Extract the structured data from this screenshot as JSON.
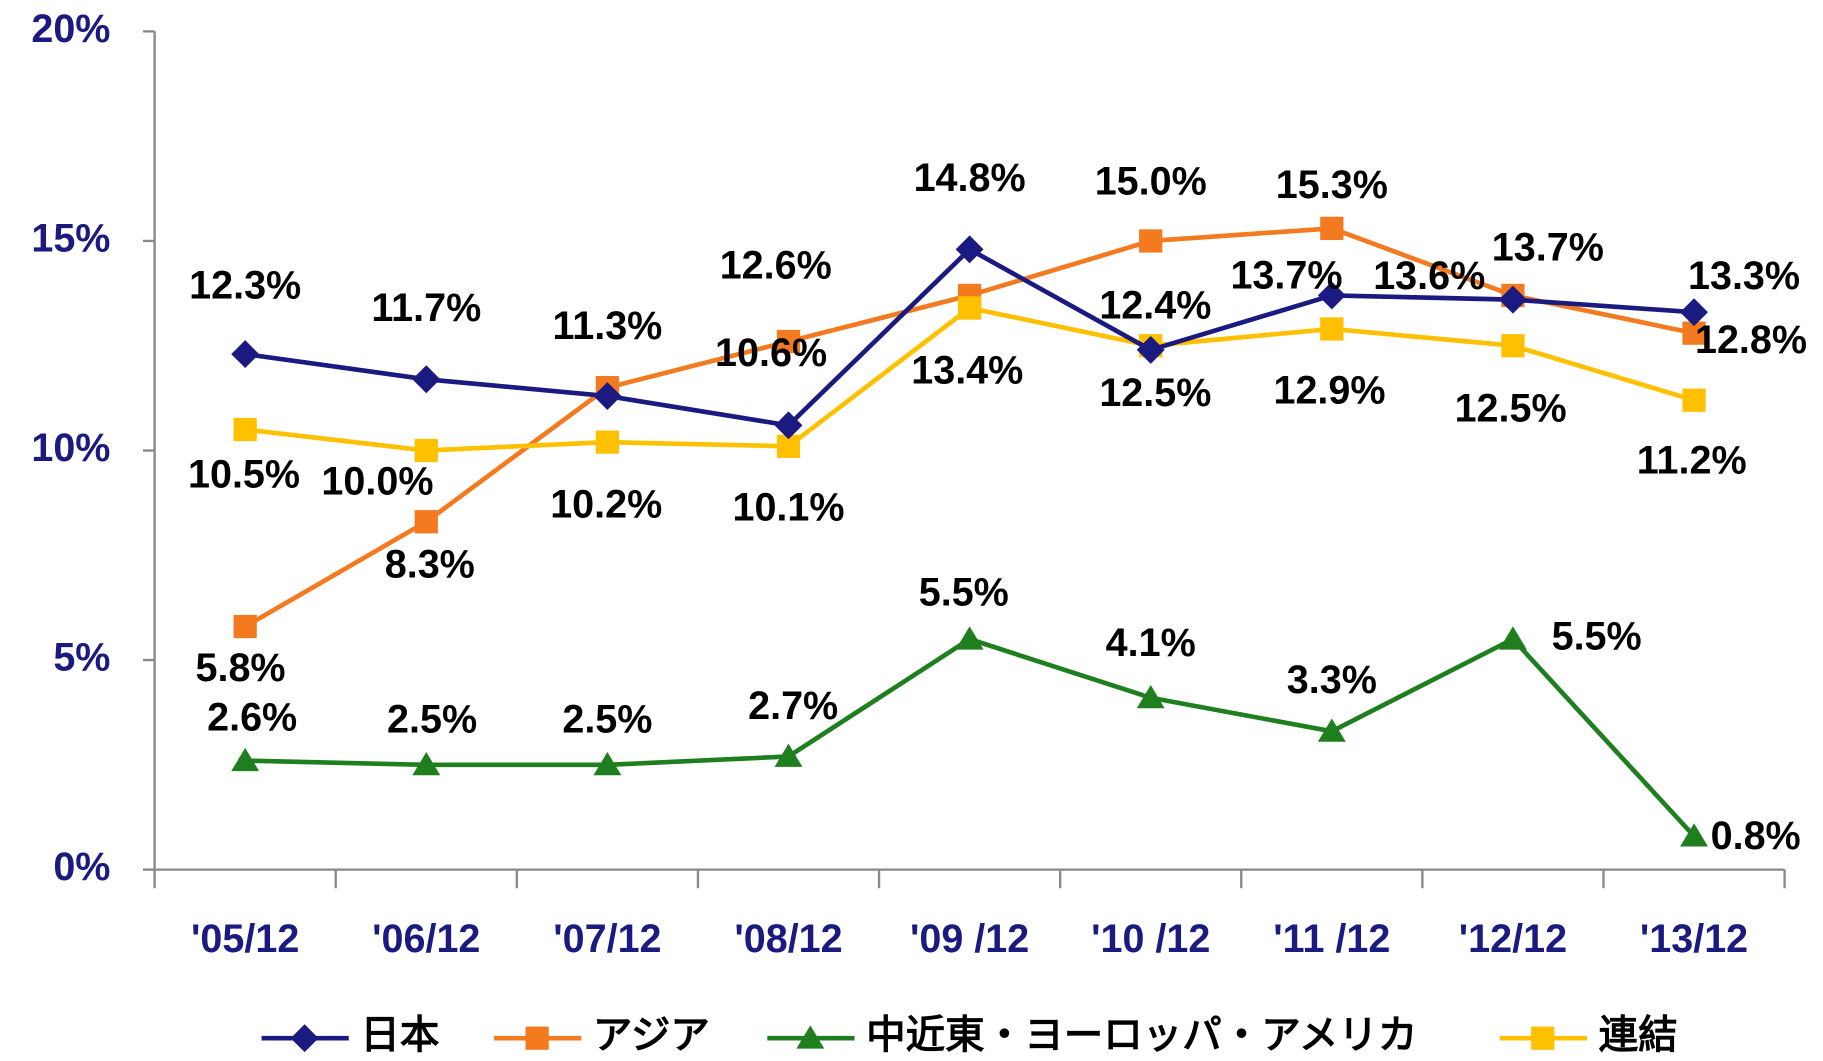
{
  "chart_data": {
    "type": "line",
    "categories": [
      "'05/12",
      "'06/12",
      "'07/12",
      "'08/12",
      "'09 /12",
      "'10 /12",
      "'11 /12",
      "'12/12",
      "'13/12"
    ],
    "ylim": [
      0,
      20
    ],
    "yticks": [
      {
        "value": 0,
        "label": "0%"
      },
      {
        "value": 5,
        "label": "5%"
      },
      {
        "value": 10,
        "label": "10%"
      },
      {
        "value": 15,
        "label": "15%"
      },
      {
        "value": 20,
        "label": "20%"
      }
    ],
    "legend": "bottom",
    "series": [
      {
        "name": "日本",
        "color": "#1a1a80",
        "marker": "diamond",
        "values": [
          12.3,
          11.7,
          11.3,
          10.6,
          14.8,
          12.4,
          13.7,
          13.6,
          13.3
        ],
        "value_labels": [
          "12.3%",
          "11.7%",
          "11.3%",
          "10.6%",
          "14.8%",
          "12.4%",
          "13.7%",
          "13.6%",
          "13.3%"
        ]
      },
      {
        "name": "アジア",
        "color": "#f47a20",
        "marker": "square",
        "values": [
          5.8,
          8.3,
          11.5,
          12.6,
          13.7,
          15.0,
          15.3,
          13.7,
          12.8
        ],
        "value_labels": [
          "5.8%",
          "8.3%",
          null,
          "12.6%",
          null,
          "15.0%",
          "15.3%",
          "13.7%",
          "12.8%"
        ]
      },
      {
        "name": "中近東・ヨーロッパ・アメリカ",
        "color": "#1f7f1f",
        "marker": "triangle",
        "values": [
          2.6,
          2.5,
          2.5,
          2.7,
          5.5,
          4.1,
          3.3,
          5.5,
          0.8
        ],
        "value_labels": [
          "2.6%",
          "2.5%",
          "2.5%",
          "2.7%",
          "5.5%",
          "4.1%",
          "3.3%",
          "5.5%",
          "0.8%"
        ]
      },
      {
        "name": "連結",
        "color": "#ffc000",
        "marker": "square",
        "values": [
          10.5,
          10.0,
          10.2,
          10.1,
          13.4,
          12.5,
          12.9,
          12.5,
          11.2
        ],
        "value_labels": [
          "10.5%",
          "10.0%",
          "10.2%",
          "10.1%",
          "13.4%",
          "12.5%",
          "12.9%",
          "12.5%",
          "11.2%"
        ]
      }
    ]
  }
}
